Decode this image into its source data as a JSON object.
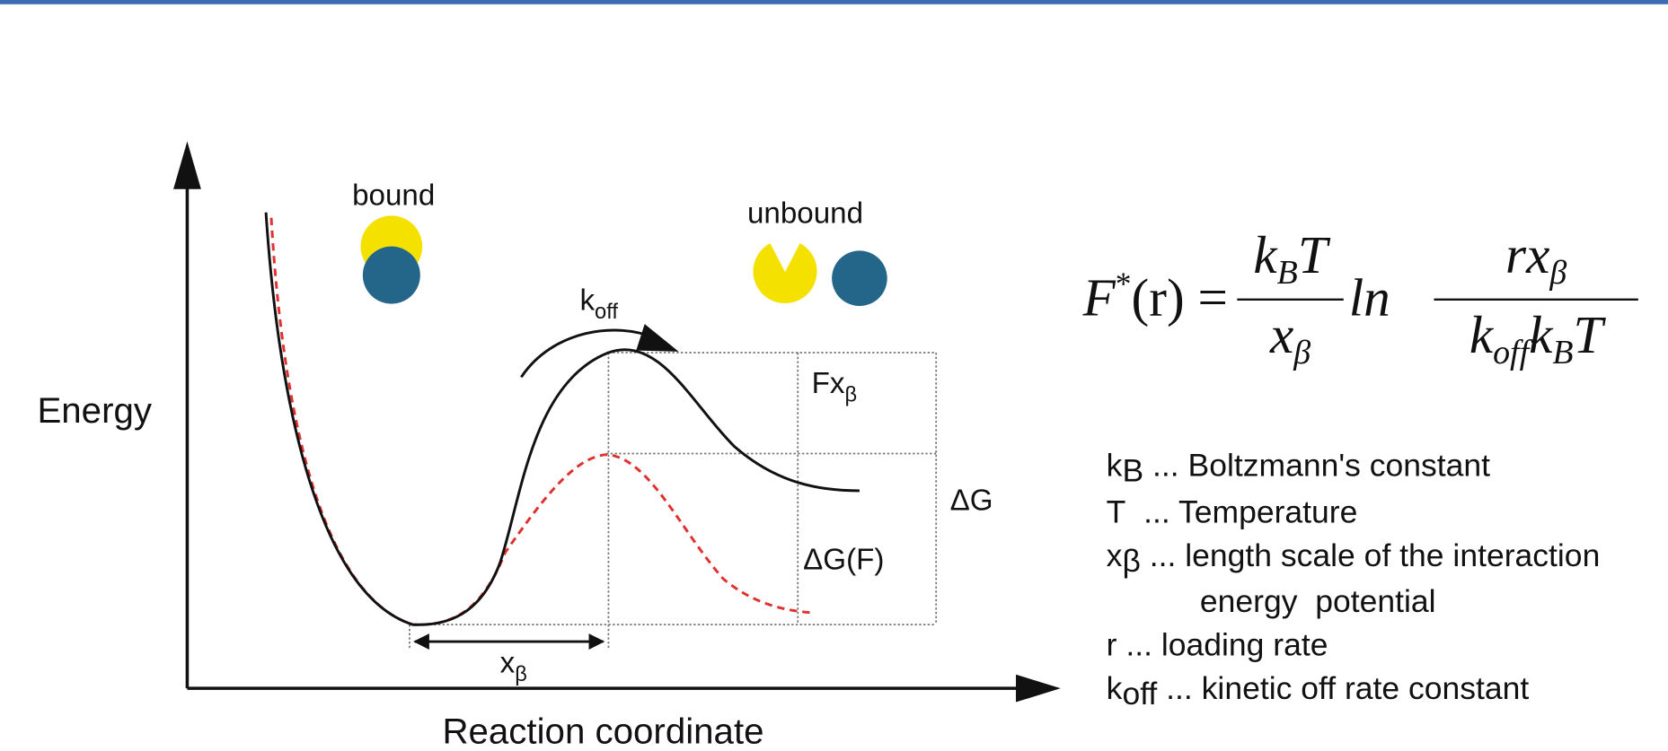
{
  "diagram": {
    "bound": "bound",
    "unbound": "unbound",
    "rate": {
      "base": "k",
      "sub": "off"
    },
    "y_axis": "Energy",
    "x_axis": "Reaction coordinate",
    "force_term": {
      "base": "Fx",
      "sub": "β"
    },
    "delta_g": "ΔG",
    "delta_g_f": "ΔG(F)",
    "x_beta": {
      "base": "x",
      "sub": "β"
    }
  },
  "formula": {
    "lhs": [
      "F",
      "*",
      "(r) ="
    ],
    "frac1_num": [
      "k",
      "B",
      "T"
    ],
    "frac1_den": [
      "x",
      "β"
    ],
    "ln": "ln",
    "frac2_num": [
      "rx",
      "β"
    ],
    "frac2_den": [
      "k",
      "off",
      "k",
      "B",
      "T"
    ]
  },
  "legend": [
    {
      "symbol": "k",
      "sub": "B",
      "text": " ... Boltzmann's constant"
    },
    {
      "symbol": "T",
      "text": "  ... Temperature"
    },
    {
      "symbol": "x",
      "sub": "β",
      "text": " ... length scale of the interaction"
    },
    {
      "text": "energy  potential"
    },
    {
      "symbol": "r",
      "text": " ... loading rate"
    },
    {
      "symbol": "k",
      "sub": "off",
      "text": " ... kinetic off rate constant"
    }
  ]
}
